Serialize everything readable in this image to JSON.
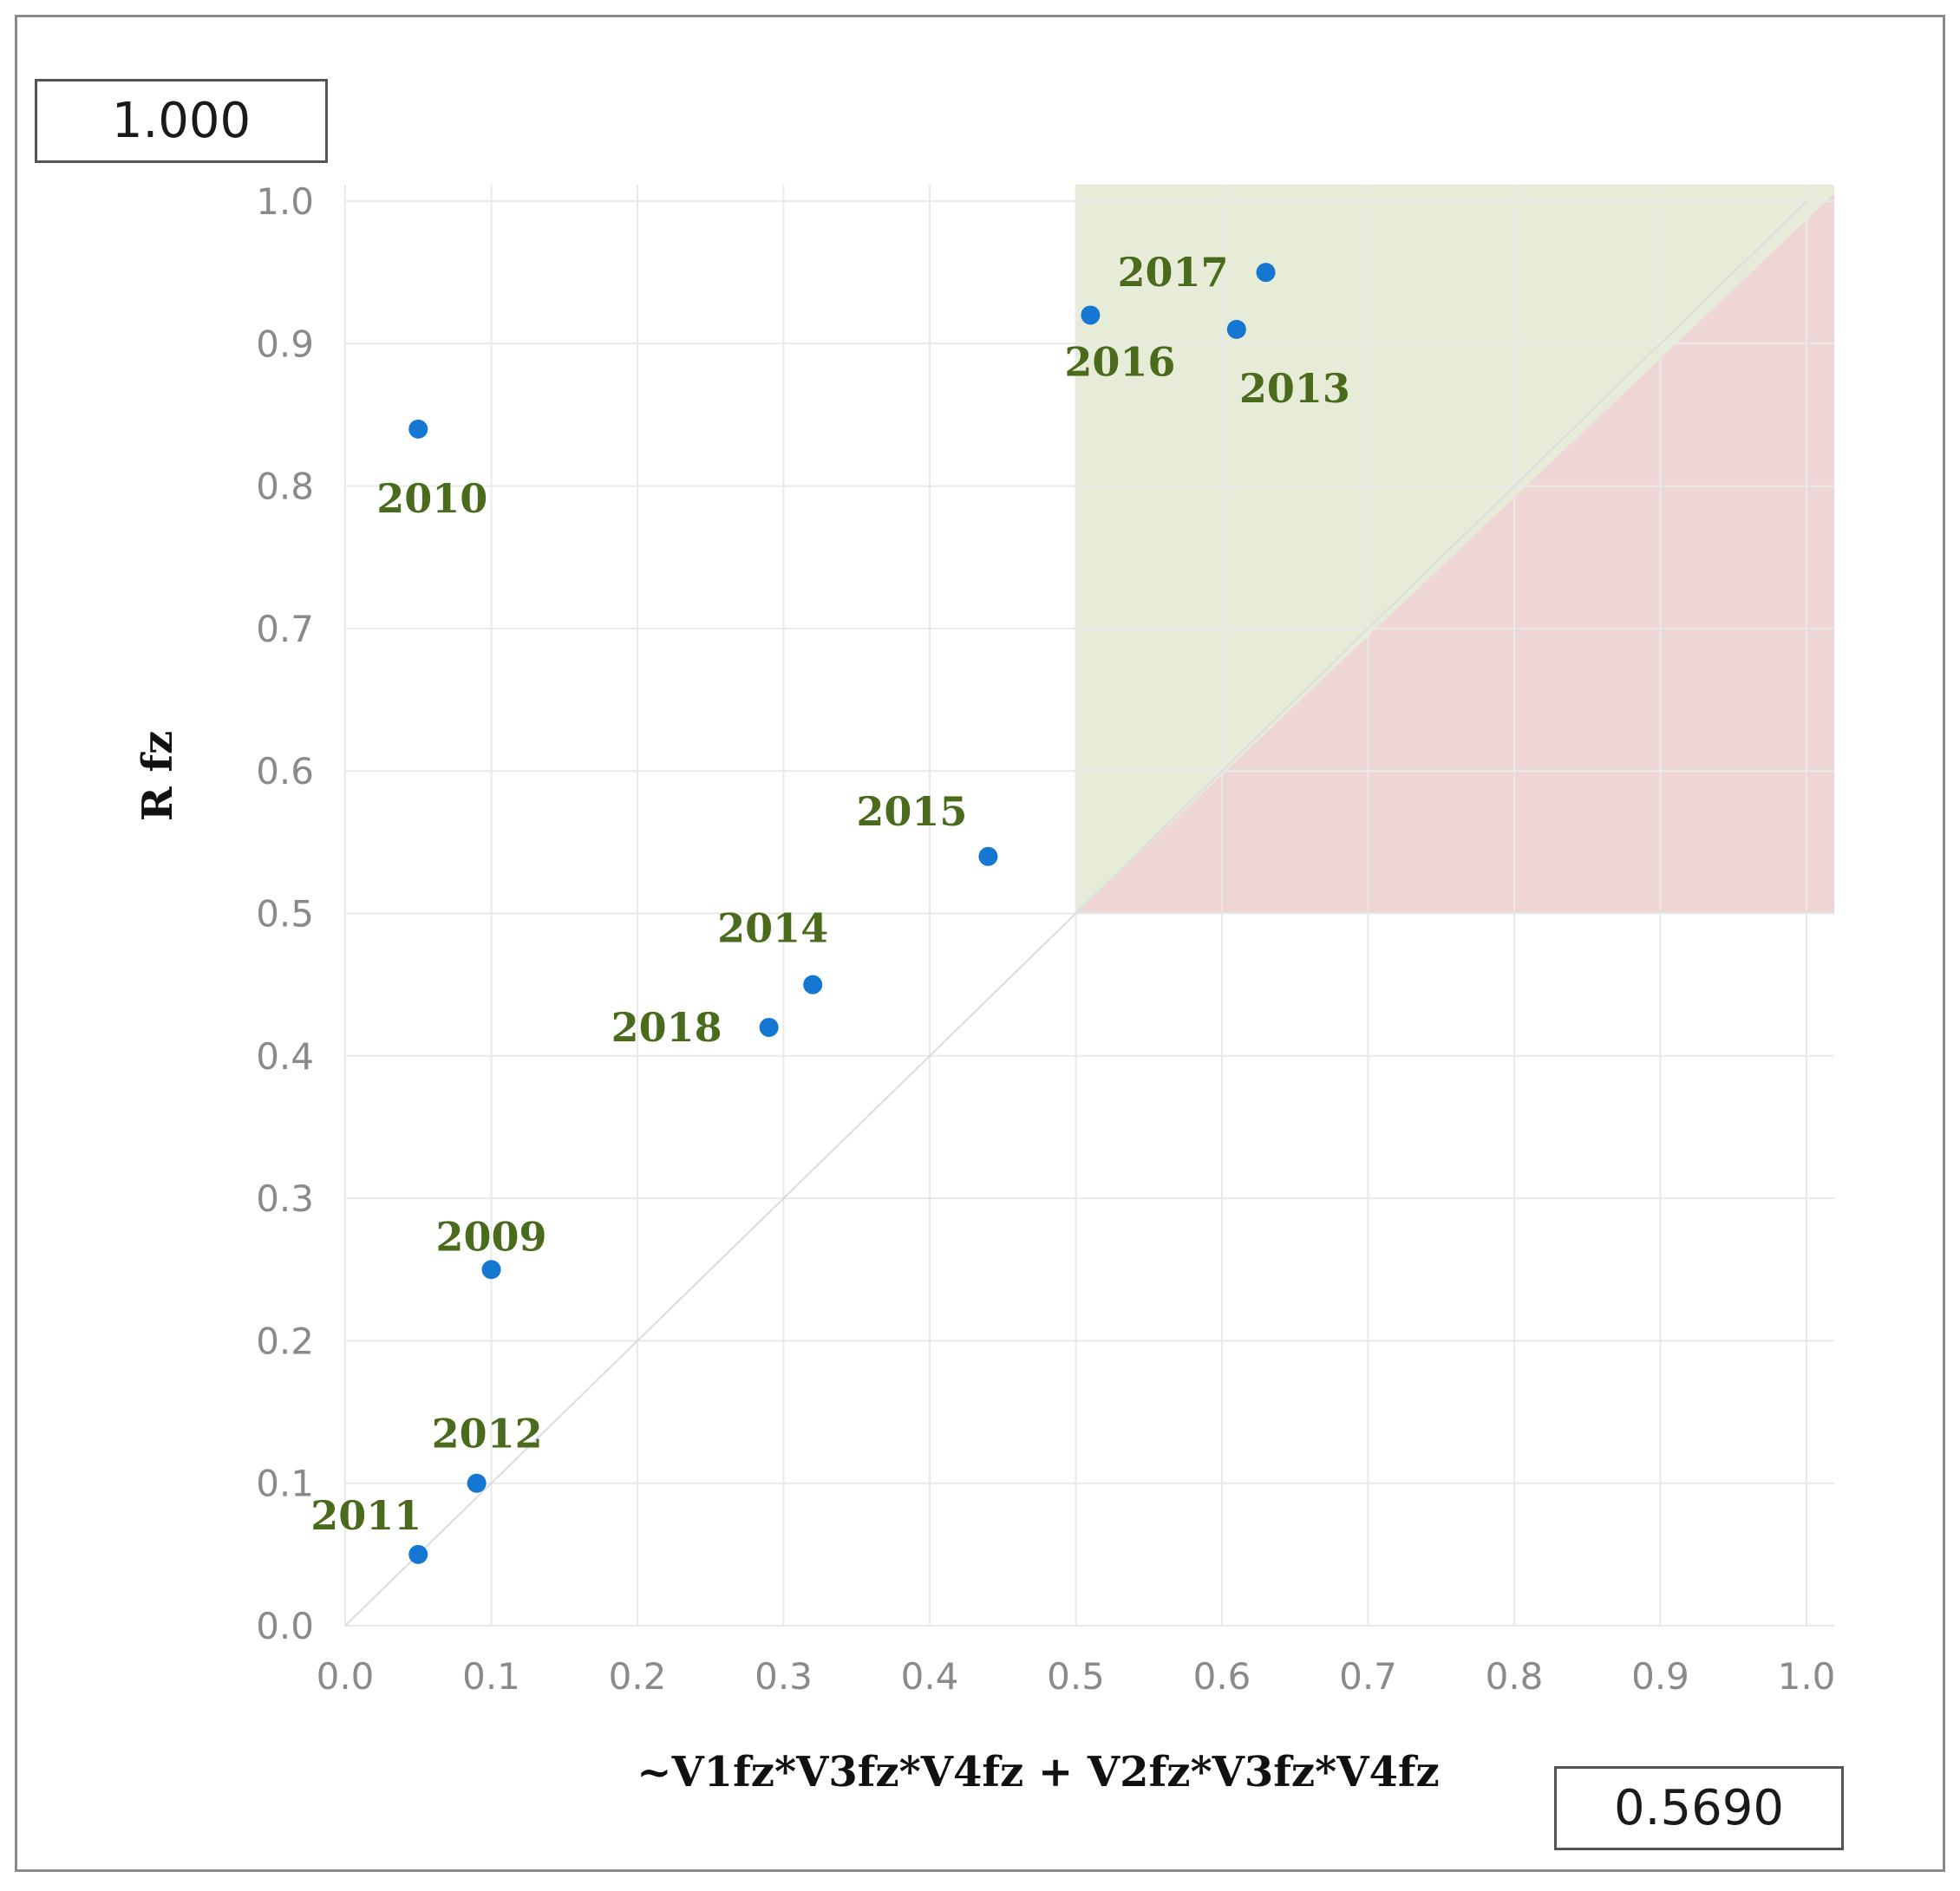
{
  "value_boxes": {
    "y_value": "1.000",
    "x_value": "0.5690"
  },
  "colors": {
    "point": "#1677d2",
    "label": "#4a6a1c",
    "green_region": "#e6ecd8",
    "red_region": "#efd6d6",
    "grid": "#e9e9e9",
    "tick": "#8a8a8a"
  },
  "chart_data": {
    "type": "scatter",
    "title": "",
    "xlabel": "~V1fz*V3fz*V4fz + V2fz*V3fz*V4fz",
    "ylabel": "R fz",
    "xlim": [
      0,
      1
    ],
    "ylim": [
      0,
      1
    ],
    "x_ticks": [
      "0.0",
      "0.1",
      "0.2",
      "0.3",
      "0.4",
      "0.5",
      "0.6",
      "0.7",
      "0.8",
      "0.9",
      "1.0"
    ],
    "y_ticks": [
      "0.0",
      "0.1",
      "0.2",
      "0.3",
      "0.4",
      "0.5",
      "0.6",
      "0.7",
      "0.8",
      "0.9",
      "1.0"
    ],
    "grid": true,
    "reference_line": "y = x",
    "regions": [
      {
        "name": "consistency-region",
        "color": "#e6ecd8",
        "x_range": [
          0.5,
          1.0
        ],
        "y_range": [
          0.5,
          1.0
        ],
        "above_diagonal": true
      },
      {
        "name": "inconsistency-region",
        "color": "#efd6d6",
        "x_range": [
          0.5,
          1.0
        ],
        "y_range": [
          0.5,
          1.0
        ],
        "above_diagonal": false
      }
    ],
    "points": [
      {
        "label": "2009",
        "x": 0.1,
        "y": 0.25
      },
      {
        "label": "2010",
        "x": 0.05,
        "y": 0.84
      },
      {
        "label": "2011",
        "x": 0.05,
        "y": 0.05
      },
      {
        "label": "2012",
        "x": 0.09,
        "y": 0.1
      },
      {
        "label": "2013",
        "x": 0.61,
        "y": 0.91
      },
      {
        "label": "2014",
        "x": 0.32,
        "y": 0.45
      },
      {
        "label": "2015",
        "x": 0.44,
        "y": 0.54
      },
      {
        "label": "2016",
        "x": 0.51,
        "y": 0.92
      },
      {
        "label": "2017",
        "x": 0.63,
        "y": 0.95
      },
      {
        "label": "2018",
        "x": 0.29,
        "y": 0.42
      }
    ]
  }
}
